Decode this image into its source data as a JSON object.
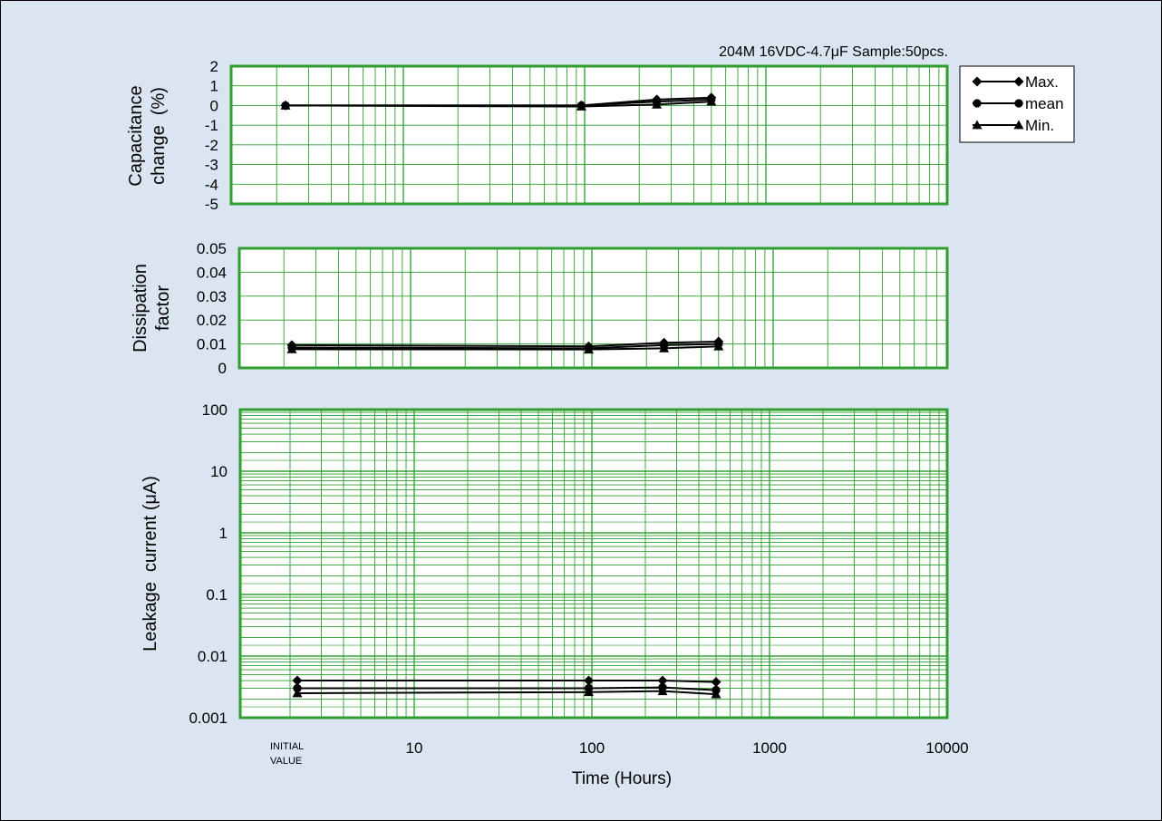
{
  "title": "204M 16VDC-4.7μF Sample:50pcs.",
  "colors": {
    "background": "#dbe5f1",
    "grid": "#2e9e2e",
    "plot_border": "#2e9e2e",
    "series": "#000000"
  },
  "legend": {
    "position": "top-right",
    "entries": [
      "Max.",
      "mean",
      "Min."
    ]
  },
  "x_axis": {
    "label": "Time (Hours)",
    "scale": "log",
    "range": [
      1,
      10000
    ],
    "ticks": [
      "10",
      "100",
      "1000",
      "10000"
    ],
    "initial_label_line1": "INITIAL",
    "initial_label_line2": "VALUE"
  },
  "chart_data": [
    {
      "type": "line",
      "ylabel_line1": "Capacitance",
      "ylabel_line2": "change  (%)",
      "ylim": [
        -5,
        2
      ],
      "yticks": [
        "2",
        "1",
        "0",
        "-1",
        "-2",
        "-3",
        "-4",
        "-5"
      ],
      "x": [
        "INITIAL VALUE",
        96,
        250,
        500
      ],
      "series": [
        {
          "name": "Max.",
          "marker": "diamond",
          "values": [
            0,
            0,
            0.3,
            0.4
          ]
        },
        {
          "name": "mean",
          "marker": "circle",
          "values": [
            0,
            0,
            0.2,
            0.3
          ]
        },
        {
          "name": "Min.",
          "marker": "triangle",
          "values": [
            0,
            -0.05,
            0.05,
            0.2
          ]
        }
      ]
    },
    {
      "type": "line",
      "ylabel_line1": "Dissipation",
      "ylabel_line2": "factor",
      "ylim": [
        0,
        0.05
      ],
      "yticks": [
        "0.05",
        "0.04",
        "0.03",
        "0.02",
        "0.01",
        "0"
      ],
      "x": [
        "INITIAL VALUE",
        96,
        250,
        500
      ],
      "series": [
        {
          "name": "Max.",
          "marker": "diamond",
          "values": [
            0.0095,
            0.009,
            0.0105,
            0.011
          ]
        },
        {
          "name": "mean",
          "marker": "circle",
          "values": [
            0.0085,
            0.0082,
            0.0095,
            0.01
          ]
        },
        {
          "name": "Min.",
          "marker": "triangle",
          "values": [
            0.0078,
            0.0077,
            0.0082,
            0.009
          ]
        }
      ]
    },
    {
      "type": "line",
      "ylabel": "Leakage  current (μA)",
      "yscale": "log",
      "ylim": [
        0.001,
        100
      ],
      "yticks": [
        "100",
        "10",
        "1",
        "0.1",
        "0.01",
        "0.001"
      ],
      "x": [
        "INITIAL VALUE",
        96,
        250,
        500
      ],
      "series": [
        {
          "name": "Max.",
          "marker": "diamond",
          "values": [
            0.004,
            0.004,
            0.004,
            0.0038
          ]
        },
        {
          "name": "mean",
          "marker": "circle",
          "values": [
            0.003,
            0.003,
            0.0031,
            0.0028
          ]
        },
        {
          "name": "Min.",
          "marker": "triangle",
          "values": [
            0.0025,
            0.0026,
            0.0027,
            0.0024
          ]
        }
      ]
    }
  ]
}
